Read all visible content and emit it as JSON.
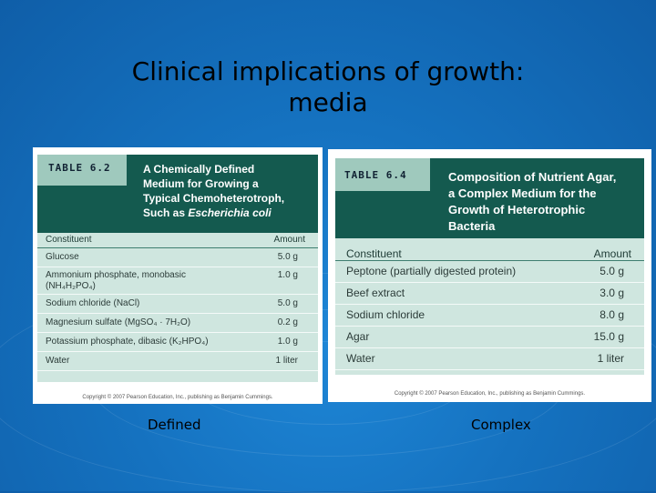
{
  "slide": {
    "title_line1": "Clinical implications of growth:",
    "title_line2": "media"
  },
  "table1": {
    "label": "TABLE 6.2",
    "title_line1": "A Chemically Defined",
    "title_line2": "Medium for Growing a",
    "title_line3": "Typical Chemoheterotroph,",
    "title_line4_prefix": "Such as ",
    "title_line4_italic": "Escherichia coli",
    "col_constituent": "Constituent",
    "col_amount": "Amount",
    "rows": [
      {
        "name": "Glucose",
        "amount": "5.0 g"
      },
      {
        "name": "Ammonium phosphate, monobasic",
        "name2": "(NH₄H₂PO₄)",
        "amount": "1.0 g"
      },
      {
        "name": "Sodium chloride (NaCl)",
        "amount": "5.0 g"
      },
      {
        "name": "Magnesium sulfate (MgSO₄ · 7H₂O)",
        "amount": "0.2 g"
      },
      {
        "name": "Potassium phosphate, dibasic (K₂HPO₄)",
        "amount": "1.0 g"
      },
      {
        "name": "Water",
        "amount": "1 liter"
      }
    ],
    "copyright": "Copyright © 2007 Pearson Education, Inc., publishing as Benjamin Cummings."
  },
  "table2": {
    "label": "TABLE 6.4",
    "title_line1": "Composition of Nutrient Agar,",
    "title_line2": "a Complex Medium for the",
    "title_line3": "Growth of Heterotrophic",
    "title_line4": "Bacteria",
    "col_constituent": "Constituent",
    "col_amount": "Amount",
    "rows": [
      {
        "name": "Peptone (partially digested protein)",
        "amount": "5.0 g"
      },
      {
        "name": "Beef extract",
        "amount": "3.0 g"
      },
      {
        "name": "Sodium chloride",
        "amount": "8.0 g"
      },
      {
        "name": "Agar",
        "amount": "15.0 g"
      },
      {
        "name": "Water",
        "amount": "1 liter"
      }
    ],
    "copyright": "Copyright © 2007 Pearson Education, Inc., publishing as Benjamin Cummings."
  },
  "captions": {
    "left": "Defined",
    "right": "Complex"
  }
}
